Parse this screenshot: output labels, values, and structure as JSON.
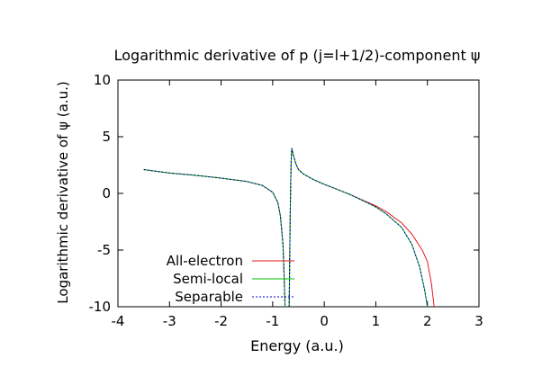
{
  "chart_data": {
    "type": "line",
    "title": "Logarithmic derivative of p (j=l+1/2)-component ψ",
    "xlabel": "Energy (a.u.)",
    "ylabel": "Logarithmic derivative of ψ (a.u.)",
    "xlim": [
      -4,
      3
    ],
    "ylim": [
      -10,
      10
    ],
    "xticks": [
      -4,
      -3,
      -2,
      -1,
      0,
      1,
      2,
      3
    ],
    "yticks": [
      -10,
      -5,
      0,
      5,
      10
    ],
    "grid": false,
    "legend_position": "bottom-left",
    "series": [
      {
        "name": "All-electron",
        "color": "#e41a1c",
        "style": "solid",
        "segments": [
          [
            [
              -3.5,
              2.1
            ],
            [
              -3.0,
              1.8
            ],
            [
              -2.5,
              1.6
            ],
            [
              -2.0,
              1.35
            ],
            [
              -1.5,
              1.05
            ],
            [
              -1.2,
              0.7
            ],
            [
              -1.0,
              0.1
            ],
            [
              -0.9,
              -0.8
            ],
            [
              -0.85,
              -2.0
            ],
            [
              -0.8,
              -4.5
            ],
            [
              -0.78,
              -7.0
            ],
            [
              -0.76,
              -10.0
            ]
          ],
          [
            [
              -0.68,
              -10.0
            ],
            [
              -0.67,
              -6.0
            ],
            [
              -0.66,
              -2.0
            ],
            [
              -0.65,
              1.0
            ],
            [
              -0.64,
              3.0
            ],
            [
              -0.63,
              4.0
            ],
            [
              -0.6,
              3.4
            ],
            [
              -0.55,
              2.6
            ],
            [
              -0.5,
              2.1
            ],
            [
              -0.4,
              1.7
            ],
            [
              -0.2,
              1.2
            ],
            [
              0.0,
              0.8
            ],
            [
              0.2,
              0.45
            ],
            [
              0.5,
              -0.1
            ],
            [
              0.8,
              -0.7
            ],
            [
              1.0,
              -1.1
            ],
            [
              1.2,
              -1.6
            ],
            [
              1.5,
              -2.6
            ],
            [
              1.7,
              -3.6
            ],
            [
              1.9,
              -5.0
            ],
            [
              2.0,
              -6.0
            ],
            [
              2.08,
              -8.0
            ],
            [
              2.13,
              -10.0
            ]
          ]
        ]
      },
      {
        "name": "Semi-local",
        "color": "#00c000",
        "style": "solid",
        "segments": [
          [
            [
              -3.5,
              2.1
            ],
            [
              -3.0,
              1.8
            ],
            [
              -2.5,
              1.6
            ],
            [
              -2.0,
              1.35
            ],
            [
              -1.5,
              1.05
            ],
            [
              -1.2,
              0.7
            ],
            [
              -1.0,
              0.1
            ],
            [
              -0.9,
              -0.8
            ],
            [
              -0.85,
              -2.0
            ],
            [
              -0.8,
              -4.5
            ],
            [
              -0.78,
              -7.0
            ],
            [
              -0.76,
              -10.0
            ]
          ],
          [
            [
              -0.68,
              -10.0
            ],
            [
              -0.67,
              -6.0
            ],
            [
              -0.66,
              -2.0
            ],
            [
              -0.65,
              1.0
            ],
            [
              -0.64,
              3.0
            ],
            [
              -0.63,
              4.0
            ],
            [
              -0.6,
              3.4
            ],
            [
              -0.55,
              2.6
            ],
            [
              -0.5,
              2.1
            ],
            [
              -0.4,
              1.7
            ],
            [
              -0.2,
              1.2
            ],
            [
              0.0,
              0.8
            ],
            [
              0.2,
              0.45
            ],
            [
              0.5,
              -0.1
            ],
            [
              0.8,
              -0.75
            ],
            [
              1.0,
              -1.2
            ],
            [
              1.2,
              -1.8
            ],
            [
              1.5,
              -3.0
            ],
            [
              1.7,
              -4.5
            ],
            [
              1.85,
              -6.5
            ],
            [
              1.95,
              -8.6
            ],
            [
              2.0,
              -10.0
            ]
          ]
        ]
      },
      {
        "name": "Separable",
        "color": "#0000cc",
        "style": "dotted",
        "segments": [
          [
            [
              -3.5,
              2.1
            ],
            [
              -3.0,
              1.8
            ],
            [
              -2.5,
              1.6
            ],
            [
              -2.0,
              1.35
            ],
            [
              -1.5,
              1.05
            ],
            [
              -1.2,
              0.7
            ],
            [
              -1.0,
              0.1
            ],
            [
              -0.9,
              -0.8
            ],
            [
              -0.85,
              -2.0
            ],
            [
              -0.8,
              -4.5
            ],
            [
              -0.78,
              -7.0
            ],
            [
              -0.76,
              -10.0
            ]
          ],
          [
            [
              -0.68,
              -10.0
            ],
            [
              -0.67,
              -6.0
            ],
            [
              -0.66,
              -2.0
            ],
            [
              -0.65,
              1.0
            ],
            [
              -0.64,
              3.0
            ],
            [
              -0.63,
              4.0
            ],
            [
              -0.6,
              3.4
            ],
            [
              -0.55,
              2.6
            ],
            [
              -0.5,
              2.1
            ],
            [
              -0.4,
              1.7
            ],
            [
              -0.2,
              1.2
            ],
            [
              0.0,
              0.8
            ],
            [
              0.2,
              0.45
            ],
            [
              0.5,
              -0.1
            ],
            [
              0.8,
              -0.75
            ],
            [
              1.0,
              -1.2
            ],
            [
              1.2,
              -1.8
            ],
            [
              1.5,
              -3.0
            ],
            [
              1.7,
              -4.5
            ],
            [
              1.85,
              -6.5
            ],
            [
              1.95,
              -8.6
            ],
            [
              2.0,
              -10.0
            ]
          ]
        ]
      }
    ]
  }
}
